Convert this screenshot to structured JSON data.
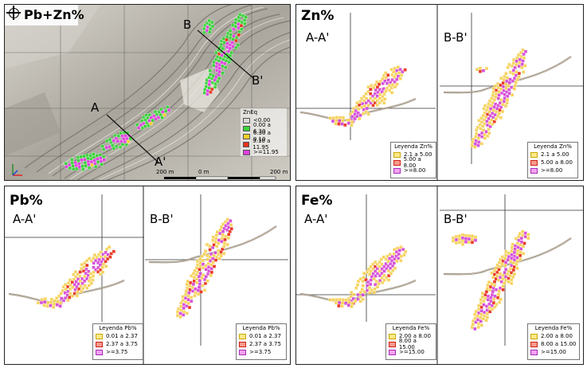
{
  "map_panel": {
    "title": "Pb+Zn%",
    "labels": {
      "a": "A",
      "a_prime": "A'",
      "b": "B",
      "b_prime": "B'"
    },
    "scale": {
      "left": "200 m",
      "mid": "0 m",
      "right": "200 m"
    },
    "legend": {
      "title": "ZnEq",
      "items": [
        {
          "label": "<0.00",
          "color": "#d8d8d8"
        },
        {
          "label": "0.00 a 6.30",
          "color": "#39d439"
        },
        {
          "label": "6.30 a 9.10",
          "color": "#f6d22a"
        },
        {
          "label": "9.10 a 11.95",
          "color": "#e8321e"
        },
        {
          "label": ">=11.95",
          "color": "#e040e0"
        }
      ]
    }
  },
  "zn_panel": {
    "title": "Zn%",
    "sec_a": "A-A'",
    "sec_b": "B-B'",
    "legend_a": {
      "title": "Leyenda Zn%",
      "items": [
        "2.1 a 5.00",
        "5.00 a 8.00",
        ">=8.00"
      ]
    },
    "legend_b": {
      "title": "Leyenda Zn%",
      "items": [
        "2.1 a 5.00",
        "5.00 a 8.00",
        ">=8.00"
      ]
    }
  },
  "pb_panel": {
    "title": "Pb%",
    "sec_a": "A-A'",
    "sec_b": "B-B'",
    "legend_a": {
      "title": "Leyenda Pb%",
      "items": [
        "0.01 a 2.37",
        "2.37 a 3.75",
        ">=3.75"
      ]
    },
    "legend_b": {
      "title": "Leyenda Pb%",
      "items": [
        "0.01 a 2.37",
        "2.37 a 3.75",
        ">=3.75"
      ]
    }
  },
  "fe_panel": {
    "title": "Fe%",
    "sec_a": "A-A'",
    "sec_b": "B-B'",
    "legend_a": {
      "title": "Leyenda Fe%",
      "items": [
        "2.00 a 8.00",
        "8.00 a 15.00",
        ">=15.00"
      ]
    },
    "legend_b": {
      "title": "Leyenda Fe%",
      "items": [
        "2.00 a 8.00",
        "8.00 a 15.00",
        ">=15.00"
      ]
    }
  },
  "colors": {
    "low": "#f6d25a",
    "mid": "#e8321e",
    "high": "#d44ad8",
    "terrain": "#c8c4bc"
  }
}
